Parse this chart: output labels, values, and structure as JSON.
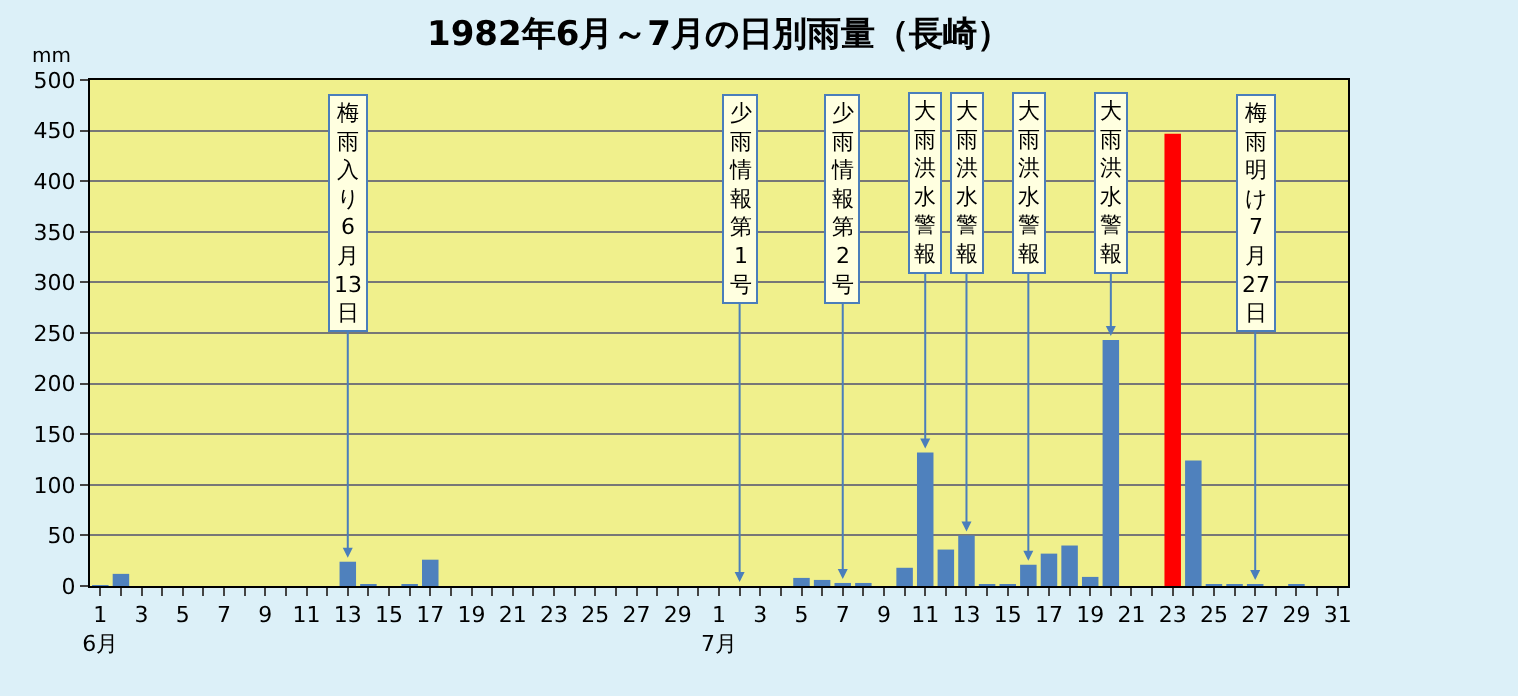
{
  "chart_data": {
    "type": "bar",
    "title": "1982年6月～7月の日別雨量（長崎）",
    "ylabel": "mm",
    "x": [
      "1982-06-01",
      "1982-06-02",
      "1982-06-03",
      "1982-06-04",
      "1982-06-05",
      "1982-06-06",
      "1982-06-07",
      "1982-06-08",
      "1982-06-09",
      "1982-06-10",
      "1982-06-11",
      "1982-06-12",
      "1982-06-13",
      "1982-06-14",
      "1982-06-15",
      "1982-06-16",
      "1982-06-17",
      "1982-06-18",
      "1982-06-19",
      "1982-06-20",
      "1982-06-21",
      "1982-06-22",
      "1982-06-23",
      "1982-06-24",
      "1982-06-25",
      "1982-06-26",
      "1982-06-27",
      "1982-06-28",
      "1982-06-29",
      "1982-06-30",
      "1982-07-01",
      "1982-07-02",
      "1982-07-03",
      "1982-07-04",
      "1982-07-05",
      "1982-07-06",
      "1982-07-07",
      "1982-07-08",
      "1982-07-09",
      "1982-07-10",
      "1982-07-11",
      "1982-07-12",
      "1982-07-13",
      "1982-07-14",
      "1982-07-15",
      "1982-07-16",
      "1982-07-17",
      "1982-07-18",
      "1982-07-19",
      "1982-07-20",
      "1982-07-21",
      "1982-07-22",
      "1982-07-23",
      "1982-07-24",
      "1982-07-25",
      "1982-07-26",
      "1982-07-27",
      "1982-07-28",
      "1982-07-29",
      "1982-07-30",
      "1982-07-31"
    ],
    "values": [
      1,
      12,
      0,
      0,
      0,
      0,
      0,
      0,
      0,
      0,
      0,
      0,
      24,
      2,
      0,
      2,
      26,
      0,
      0,
      0,
      0,
      0,
      0,
      0,
      0,
      0,
      0,
      0,
      0,
      0,
      0,
      0,
      0,
      0,
      8,
      6,
      3,
      3,
      0,
      18,
      132,
      36,
      50,
      2,
      2,
      21,
      32,
      40,
      9,
      243,
      0,
      0,
      447,
      124,
      2,
      2,
      2,
      0,
      2,
      0,
      0
    ],
    "colors": [
      "#4f81bd",
      "#4f81bd",
      "#4f81bd",
      "#4f81bd",
      "#4f81bd",
      "#4f81bd",
      "#4f81bd",
      "#4f81bd",
      "#4f81bd",
      "#4f81bd",
      "#4f81bd",
      "#4f81bd",
      "#4f81bd",
      "#4f81bd",
      "#4f81bd",
      "#4f81bd",
      "#4f81bd",
      "#4f81bd",
      "#4f81bd",
      "#4f81bd",
      "#4f81bd",
      "#4f81bd",
      "#4f81bd",
      "#4f81bd",
      "#4f81bd",
      "#4f81bd",
      "#4f81bd",
      "#4f81bd",
      "#4f81bd",
      "#4f81bd",
      "#4f81bd",
      "#4f81bd",
      "#4f81bd",
      "#4f81bd",
      "#4f81bd",
      "#4f81bd",
      "#4f81bd",
      "#4f81bd",
      "#4f81bd",
      "#4f81bd",
      "#4f81bd",
      "#4f81bd",
      "#4f81bd",
      "#4f81bd",
      "#4f81bd",
      "#4f81bd",
      "#4f81bd",
      "#4f81bd",
      "#4f81bd",
      "#4f81bd",
      "#4f81bd",
      "#4f81bd",
      "#ff0000",
      "#4f81bd",
      "#4f81bd",
      "#4f81bd",
      "#4f81bd",
      "#4f81bd",
      "#4f81bd",
      "#4f81bd",
      "#4f81bd"
    ],
    "xlim": [
      "1982-05-31T12:00",
      "1982-07-31T12:00"
    ],
    "xticks": [
      {
        "value": "1982-06-01",
        "label": "1\n6月"
      },
      {
        "value": "1982-06-02",
        "label": null
      },
      {
        "value": "1982-06-03",
        "label": "3"
      },
      {
        "value": "1982-06-04",
        "label": null
      },
      {
        "value": "1982-06-05",
        "label": "5"
      },
      {
        "value": "1982-06-06",
        "label": null
      },
      {
        "value": "1982-06-07",
        "label": "7"
      },
      {
        "value": "1982-06-08",
        "label": null
      },
      {
        "value": "1982-06-09",
        "label": "9"
      },
      {
        "value": "1982-06-10",
        "label": null
      },
      {
        "value": "1982-06-11",
        "label": "11"
      },
      {
        "value": "1982-06-12",
        "label": null
      },
      {
        "value": "1982-06-13",
        "label": "13"
      },
      {
        "value": "1982-06-14",
        "label": null
      },
      {
        "value": "1982-06-15",
        "label": "15"
      },
      {
        "value": "1982-06-16",
        "label": null
      },
      {
        "value": "1982-06-17",
        "label": "17"
      },
      {
        "value": "1982-06-18",
        "label": null
      },
      {
        "value": "1982-06-19",
        "label": "19"
      },
      {
        "value": "1982-06-20",
        "label": null
      },
      {
        "value": "1982-06-21",
        "label": "21"
      },
      {
        "value": "1982-06-22",
        "label": null
      },
      {
        "value": "1982-06-23",
        "label": "23"
      },
      {
        "value": "1982-06-24",
        "label": null
      },
      {
        "value": "1982-06-25",
        "label": "25"
      },
      {
        "value": "1982-06-26",
        "label": null
      },
      {
        "value": "1982-06-27",
        "label": "27"
      },
      {
        "value": "1982-06-28",
        "label": null
      },
      {
        "value": "1982-06-29",
        "label": "29"
      },
      {
        "value": "1982-06-30",
        "label": null
      },
      {
        "value": "1982-07-01",
        "label": "1\n7月"
      },
      {
        "value": "1982-07-02",
        "label": null
      },
      {
        "value": "1982-07-03",
        "label": "3"
      },
      {
        "value": "1982-07-04",
        "label": null
      },
      {
        "value": "1982-07-05",
        "label": "5"
      },
      {
        "value": "1982-07-06",
        "label": null
      },
      {
        "value": "1982-07-07",
        "label": "7"
      },
      {
        "value": "1982-07-08",
        "label": null
      },
      {
        "value": "1982-07-09",
        "label": "9"
      },
      {
        "value": "1982-07-10",
        "label": null
      },
      {
        "value": "1982-07-11",
        "label": "11"
      },
      {
        "value": "1982-07-12",
        "label": null
      },
      {
        "value": "1982-07-13",
        "label": "13"
      },
      {
        "value": "1982-07-14",
        "label": null
      },
      {
        "value": "1982-07-15",
        "label": "15"
      },
      {
        "value": "1982-07-16",
        "label": null
      },
      {
        "value": "1982-07-17",
        "label": "17"
      },
      {
        "value": "1982-07-18",
        "label": null
      },
      {
        "value": "1982-07-19",
        "label": "19"
      },
      {
        "value": "1982-07-20",
        "label": null
      },
      {
        "value": "1982-07-21",
        "label": "21"
      },
      {
        "value": "1982-07-22",
        "label": null
      },
      {
        "value": "1982-07-23",
        "label": "23"
      },
      {
        "value": "1982-07-24",
        "label": null
      },
      {
        "value": "1982-07-25",
        "label": "25"
      },
      {
        "value": "1982-07-26",
        "label": null
      },
      {
        "value": "1982-07-27",
        "label": "27"
      },
      {
        "value": "1982-07-28",
        "label": null
      },
      {
        "value": "1982-07-29",
        "label": "29"
      },
      {
        "value": "1982-07-30",
        "label": null
      },
      {
        "value": "1982-07-31",
        "label": "31"
      }
    ],
    "ylim": [
      0,
      500
    ],
    "yticks": [
      0,
      50,
      100,
      150,
      200,
      250,
      300,
      350,
      400,
      450,
      500
    ],
    "grid": "y",
    "annotations": [
      {
        "text": "梅雨入り6月13日",
        "x": "1982-06-13",
        "y": 24
      },
      {
        "text": "少雨情報第1号",
        "x": "1982-07-02",
        "y": 0
      },
      {
        "text": "少雨情報第2号",
        "x": "1982-07-07",
        "y": 3
      },
      {
        "text": "大雨洪水警報",
        "x": "1982-07-11",
        "y": 132
      },
      {
        "text": "大雨洪水警報",
        "x": "1982-07-13",
        "y": 50
      },
      {
        "text": "大雨洪水警報",
        "x": "1982-07-16",
        "y": 21
      },
      {
        "text": "大雨洪水警報",
        "x": "1982-07-20",
        "y": 243
      },
      {
        "text": "梅雨明け7月27日",
        "x": "1982-07-27",
        "y": 2
      }
    ]
  }
}
